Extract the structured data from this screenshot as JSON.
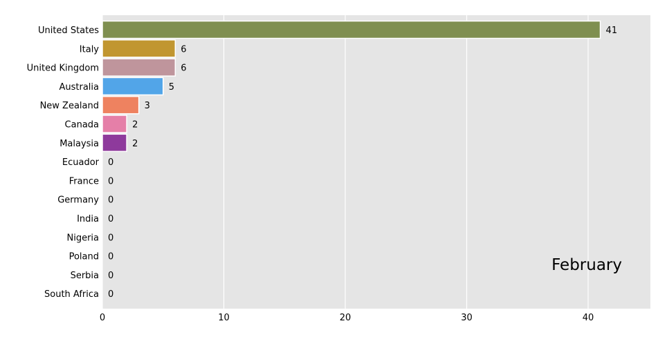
{
  "chart_data": {
    "type": "bar",
    "orientation": "horizontal",
    "categories": [
      "United States",
      "Italy",
      "United Kingdom",
      "Australia",
      "New Zealand",
      "Canada",
      "Malaysia",
      "Ecuador",
      "France",
      "Germany",
      "India",
      "Nigeria",
      "Poland",
      "Serbia",
      "South Africa"
    ],
    "values": [
      41,
      6,
      6,
      5,
      3,
      2,
      2,
      0,
      0,
      0,
      0,
      0,
      0,
      0,
      0
    ],
    "data_labels": [
      "41",
      "6",
      "6",
      "5",
      "3",
      "2",
      "2",
      "0",
      "0",
      "0",
      "0",
      "0",
      "0",
      "0",
      "0"
    ],
    "colors": [
      "#7f8f50",
      "#c19630",
      "#bf959c",
      "#52a5e8",
      "#ee8260",
      "#e57fa8",
      "#8e3a9c",
      "#999999",
      "#999999",
      "#999999",
      "#999999",
      "#999999",
      "#999999",
      "#999999",
      "#999999"
    ],
    "xlim": [
      0,
      45
    ],
    "xticks": [
      0,
      10,
      20,
      30,
      40
    ],
    "xtick_labels": [
      "0",
      "10",
      "20",
      "30",
      "40"
    ],
    "period_label": "February",
    "grid": true,
    "title": "",
    "xlabel": "",
    "ylabel": ""
  }
}
